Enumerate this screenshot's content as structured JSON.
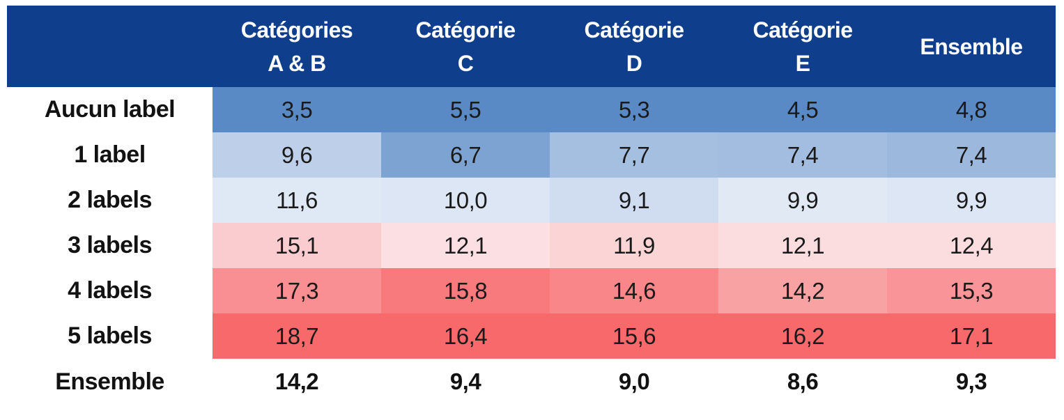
{
  "colors": {
    "header_bg": "#0E3E8C",
    "header_text": "#FFFFFF",
    "body_text": "#1A1A1A",
    "scale_low": "#5A8AC6",
    "scale_mid": "#FCFCFF",
    "scale_high": "#F8696B"
  },
  "table": {
    "col_headers": [
      {
        "line1": "Catégories",
        "line2": "A & B"
      },
      {
        "line1": "Catégorie",
        "line2": "C"
      },
      {
        "line1": "Catégorie",
        "line2": "D"
      },
      {
        "line1": "Catégorie",
        "line2": "E"
      },
      {
        "line1": "Ensemble",
        "line2": ""
      }
    ],
    "body_rows": [
      {
        "label": "Aucun label",
        "cells": [
          {
            "text": "3,5",
            "bg": "#5A8AC6"
          },
          {
            "text": "5,5",
            "bg": "#5A8AC6"
          },
          {
            "text": "5,3",
            "bg": "#5A8AC6"
          },
          {
            "text": "4,5",
            "bg": "#5A8AC6"
          },
          {
            "text": "4,8",
            "bg": "#5A8AC6"
          }
        ]
      },
      {
        "label": "1 label",
        "cells": [
          {
            "text": "9,6",
            "bg": "#BED0E9"
          },
          {
            "text": "6,7",
            "bg": "#7DA3D2"
          },
          {
            "text": "7,7",
            "bg": "#A5BFE0"
          },
          {
            "text": "7,4",
            "bg": "#A2BDDF"
          },
          {
            "text": "7,4",
            "bg": "#9CB9DD"
          }
        ]
      },
      {
        "label": "2 labels",
        "cells": [
          {
            "text": "11,6",
            "bg": "#DFE8F5"
          },
          {
            "text": "10,0",
            "bg": "#DDE6F4"
          },
          {
            "text": "9,1",
            "bg": "#D0DDF0"
          },
          {
            "text": "9,9",
            "bg": "#E1E9F5"
          },
          {
            "text": "9,9",
            "bg": "#DCE6F4"
          }
        ]
      },
      {
        "label": "3 labels",
        "cells": [
          {
            "text": "15,1",
            "bg": "#FBCCCF"
          },
          {
            "text": "12,1",
            "bg": "#FBDFE2"
          },
          {
            "text": "11,9",
            "bg": "#FBD4D6"
          },
          {
            "text": "12,1",
            "bg": "#FBDDE0"
          },
          {
            "text": "12,4",
            "bg": "#FBDDE0"
          }
        ]
      },
      {
        "label": "4 labels",
        "cells": [
          {
            "text": "17,3",
            "bg": "#F98F92"
          },
          {
            "text": "15,8",
            "bg": "#F87A7C"
          },
          {
            "text": "14,6",
            "bg": "#F98688"
          },
          {
            "text": "14,2",
            "bg": "#F9A2A4"
          },
          {
            "text": "15,3",
            "bg": "#F99598"
          }
        ]
      },
      {
        "label": "5 labels",
        "cells": [
          {
            "text": "18,7",
            "bg": "#F8696B"
          },
          {
            "text": "16,4",
            "bg": "#F8696B"
          },
          {
            "text": "15,6",
            "bg": "#F8696B"
          },
          {
            "text": "16,2",
            "bg": "#F8696B"
          },
          {
            "text": "17,1",
            "bg": "#F8696B"
          }
        ]
      }
    ],
    "footer": {
      "label": "Ensemble",
      "cells": [
        "14,2",
        "9,4",
        "9,0",
        "8,6",
        "9,3"
      ]
    }
  },
  "chart_data": {
    "type": "heatmap",
    "columns": [
      "Catégories A & B",
      "Catégorie C",
      "Catégorie D",
      "Catégorie E",
      "Ensemble"
    ],
    "rows": [
      "Aucun label",
      "1 label",
      "2 labels",
      "3 labels",
      "4 labels",
      "5 labels"
    ],
    "values": [
      [
        3.5,
        5.5,
        5.3,
        4.5,
        4.8
      ],
      [
        9.6,
        6.7,
        7.7,
        7.4,
        7.4
      ],
      [
        11.6,
        10.0,
        9.1,
        9.9,
        9.9
      ],
      [
        15.1,
        12.1,
        11.9,
        12.1,
        12.4
      ],
      [
        17.3,
        15.8,
        14.6,
        14.2,
        15.3
      ],
      [
        18.7,
        16.4,
        15.6,
        16.2,
        17.1
      ]
    ],
    "footer_row": {
      "label": "Ensemble",
      "values": [
        14.2,
        9.4,
        9.0,
        8.6,
        9.3
      ]
    },
    "decimal_separator": ",",
    "colormap": {
      "low": "#5A8AC6",
      "mid": "#FCFCFF",
      "high": "#F8696B",
      "scope": "per-column",
      "midpoint": "column median"
    },
    "legend_position": "none",
    "grid": false
  }
}
